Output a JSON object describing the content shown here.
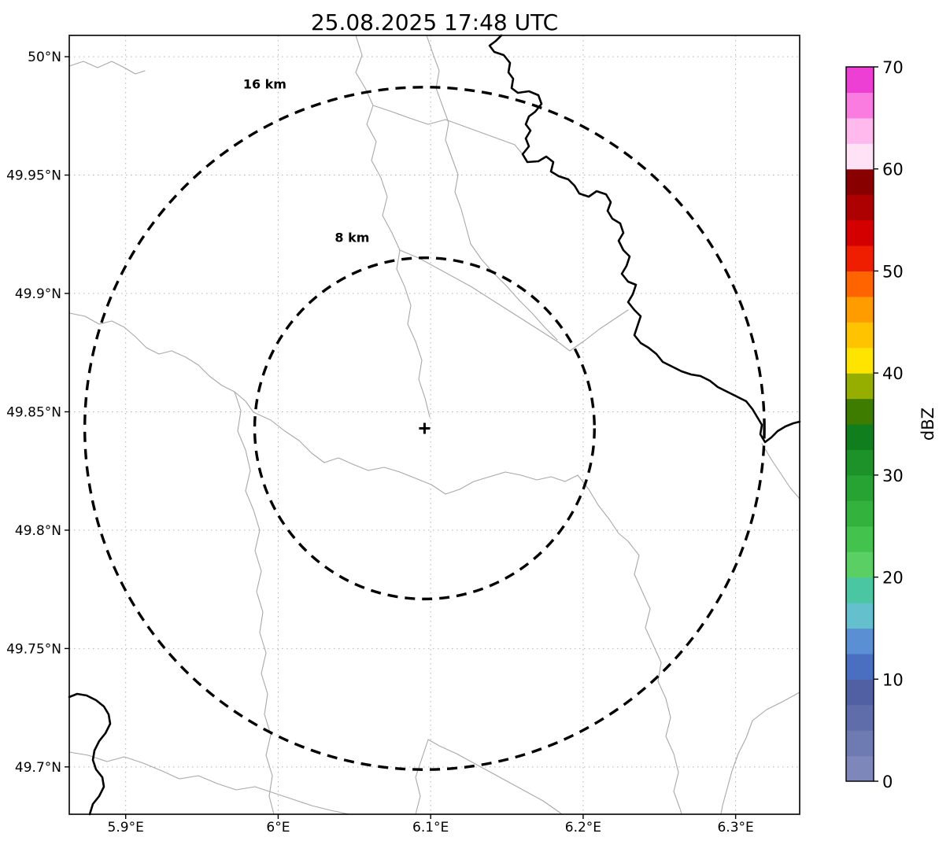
{
  "title": "25.08.2025 17:48 UTC",
  "chart_data": {
    "type": "map",
    "description": "Weather radar reflectivity (dBZ) plot over a geographic map with dashed range rings around the radar site; no precipitation echoes visible. Thin gray lines are municipal borders, thick black lines are country borders / river.",
    "title": "25.08.2025 17:48 UTC",
    "grid": true,
    "x_axis": {
      "unit": "degrees east longitude",
      "tick_labels": [
        "5.9°E",
        "6°E",
        "6.1°E",
        "6.2°E",
        "6.3°E"
      ],
      "tick_values": [
        5.9,
        6.0,
        6.1,
        6.2,
        6.3
      ],
      "range": [
        5.863,
        6.342
      ]
    },
    "y_axis": {
      "unit": "degrees north latitude",
      "tick_labels": [
        "50°N",
        "49.95°N",
        "49.9°N",
        "49.85°N",
        "49.8°N",
        "49.75°N",
        "49.7°N"
      ],
      "tick_values": [
        50.0,
        49.95,
        49.9,
        49.85,
        49.8,
        49.75,
        49.7
      ],
      "range": [
        49.68,
        50.009
      ]
    },
    "radar_center": {
      "lon": 6.096,
      "lat": 49.843,
      "marker": "+"
    },
    "range_rings": [
      {
        "label": "16 km",
        "radius_km": 16
      },
      {
        "label": "8 km",
        "radius_km": 8
      }
    ],
    "colorbar": {
      "label": "dBZ",
      "min": 0,
      "max": 70,
      "tick_values": [
        0,
        10,
        20,
        30,
        40,
        50,
        60,
        70
      ],
      "segment_step": 2.5,
      "colors_bottom_to_top": [
        "#7d87ba",
        "#6e7ab2",
        "#5f6daa",
        "#5060a2",
        "#4b6fc0",
        "#5a8fd4",
        "#63c0cc",
        "#4bc6a2",
        "#5ad064",
        "#44c24e",
        "#33b33e",
        "#27a334",
        "#1c9229",
        "#117e1e",
        "#3e7c00",
        "#95ae00",
        "#ffe400",
        "#ffc300",
        "#ff9d00",
        "#ff6400",
        "#f01e00",
        "#d40000",
        "#ad0000",
        "#880000",
        "#ffe2f6",
        "#ffb9ec",
        "#fb7ce0",
        "#ee3fd4"
      ]
    }
  }
}
